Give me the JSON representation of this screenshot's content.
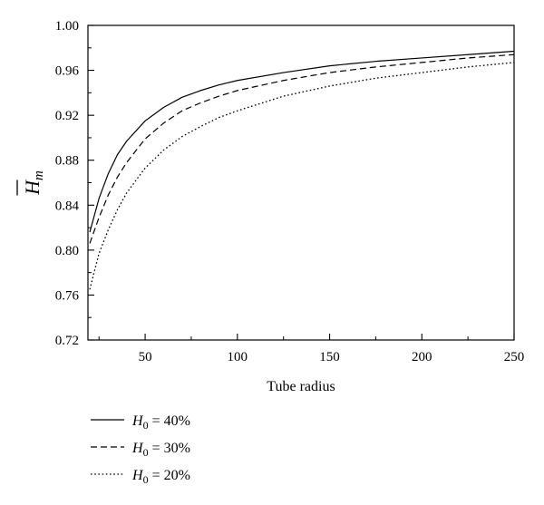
{
  "chart_data": {
    "type": "line",
    "title": "",
    "xlabel": "Tube radius",
    "ylabel": "H",
    "ylabel_subscript": "m",
    "xlim": [
      19,
      250
    ],
    "ylim": [
      0.72,
      1.0
    ],
    "xticks": [
      50,
      100,
      150,
      200,
      250
    ],
    "yticks": [
      0.72,
      0.76,
      0.8,
      0.84,
      0.88,
      0.92,
      0.96,
      1.0
    ],
    "ytick_labels": [
      "0.72",
      "0.76",
      "0.80",
      "0.84",
      "0.88",
      "0.92",
      "0.96",
      "1.00"
    ],
    "grid": false,
    "legend_position": "below",
    "series": [
      {
        "name_var": "H",
        "name_sub": "0",
        "name_rest": " = 40%",
        "line_style": "solid",
        "x": [
          20,
          25,
          30,
          35,
          40,
          50,
          60,
          70,
          80,
          90,
          100,
          125,
          150,
          175,
          200,
          225,
          250
        ],
        "y": [
          0.816,
          0.846,
          0.868,
          0.885,
          0.897,
          0.915,
          0.927,
          0.936,
          0.942,
          0.947,
          0.951,
          0.958,
          0.964,
          0.968,
          0.971,
          0.974,
          0.977
        ]
      },
      {
        "name_var": "H",
        "name_sub": "0",
        "name_rest": " = 30%",
        "line_style": "dashed",
        "x": [
          20,
          25,
          30,
          35,
          40,
          50,
          60,
          70,
          80,
          90,
          100,
          125,
          150,
          175,
          200,
          225,
          250
        ],
        "y": [
          0.806,
          0.829,
          0.849,
          0.865,
          0.878,
          0.899,
          0.913,
          0.924,
          0.931,
          0.937,
          0.942,
          0.951,
          0.958,
          0.963,
          0.967,
          0.971,
          0.974
        ]
      },
      {
        "name_var": "H",
        "name_sub": "0",
        "name_rest": " = 20%",
        "line_style": "dotted",
        "x": [
          20,
          22,
          25,
          30,
          35,
          40,
          50,
          60,
          70,
          80,
          90,
          100,
          125,
          150,
          175,
          200,
          225,
          250
        ],
        "y": [
          0.765,
          0.778,
          0.797,
          0.818,
          0.836,
          0.851,
          0.873,
          0.889,
          0.901,
          0.91,
          0.918,
          0.924,
          0.937,
          0.946,
          0.953,
          0.958,
          0.963,
          0.967
        ]
      }
    ]
  }
}
